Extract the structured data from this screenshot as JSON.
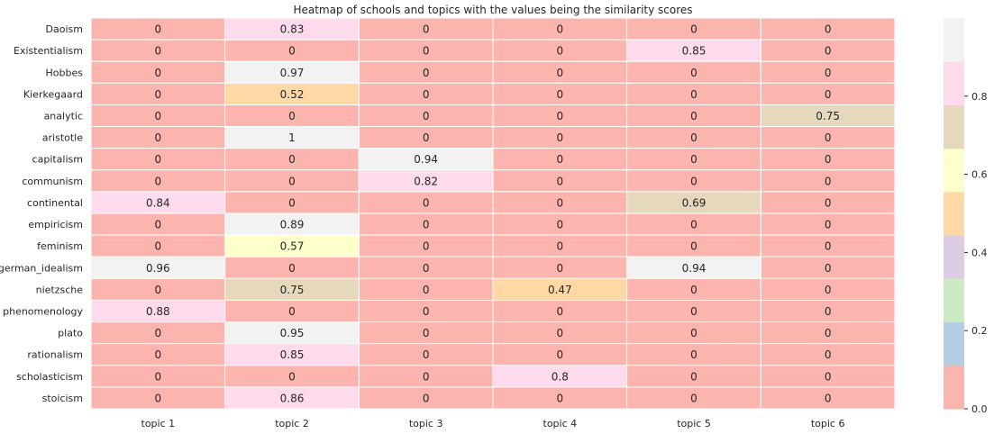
{
  "chart_data": {
    "type": "heatmap",
    "title": "Heatmap of schools and topics with the values being the similarity scores",
    "xlabel": "",
    "ylabel": "",
    "columns": [
      "topic 1",
      "topic 2",
      "topic 3",
      "topic 4",
      "topic 5",
      "topic 6"
    ],
    "rows": [
      "Daoism",
      "Existentialism",
      "Hobbes",
      "Kierkegaard",
      "analytic",
      "aristotle",
      "capitalism",
      "communism",
      "continental",
      "empiricism",
      "feminism",
      "german_idealism",
      "nietzsche",
      "phenomenology",
      "plato",
      "rationalism",
      "scholasticism",
      "stoicism"
    ],
    "values": [
      [
        0,
        0.83,
        0,
        0,
        0,
        0
      ],
      [
        0,
        0,
        0,
        0,
        0.85,
        0
      ],
      [
        0,
        0.97,
        0,
        0,
        0,
        0
      ],
      [
        0,
        0.52,
        0,
        0,
        0,
        0
      ],
      [
        0,
        0,
        0,
        0,
        0,
        0.75
      ],
      [
        0,
        1,
        0,
        0,
        0,
        0
      ],
      [
        0,
        0,
        0.94,
        0,
        0,
        0
      ],
      [
        0,
        0,
        0.82,
        0,
        0,
        0
      ],
      [
        0.84,
        0,
        0,
        0,
        0.69,
        0
      ],
      [
        0,
        0.89,
        0,
        0,
        0,
        0
      ],
      [
        0,
        0.57,
        0,
        0,
        0,
        0
      ],
      [
        0.96,
        0,
        0,
        0,
        0.94,
        0
      ],
      [
        0,
        0.75,
        0,
        0.47,
        0,
        0
      ],
      [
        0.88,
        0,
        0,
        0,
        0,
        0
      ],
      [
        0,
        0.95,
        0,
        0,
        0,
        0
      ],
      [
        0,
        0.85,
        0,
        0,
        0,
        0
      ],
      [
        0,
        0,
        0,
        0.8,
        0,
        0
      ],
      [
        0,
        0.86,
        0,
        0,
        0,
        0
      ]
    ],
    "value_range": [
      0,
      1
    ],
    "colormap": [
      "#fbb4ae",
      "#b3cde3",
      "#ccebc5",
      "#decbe4",
      "#fed9a6",
      "#ffffcc",
      "#e5d8bd",
      "#fddaec",
      "#f2f2f2"
    ],
    "colorbar_ticks": [
      0.0,
      0.2,
      0.4,
      0.6,
      0.8
    ],
    "colorbar_tick_labels": [
      "0.0",
      "0.2",
      "0.4",
      "0.6",
      "0.8"
    ],
    "grid": false,
    "cell_borders": "#ffffff",
    "text_color": "#262626"
  }
}
